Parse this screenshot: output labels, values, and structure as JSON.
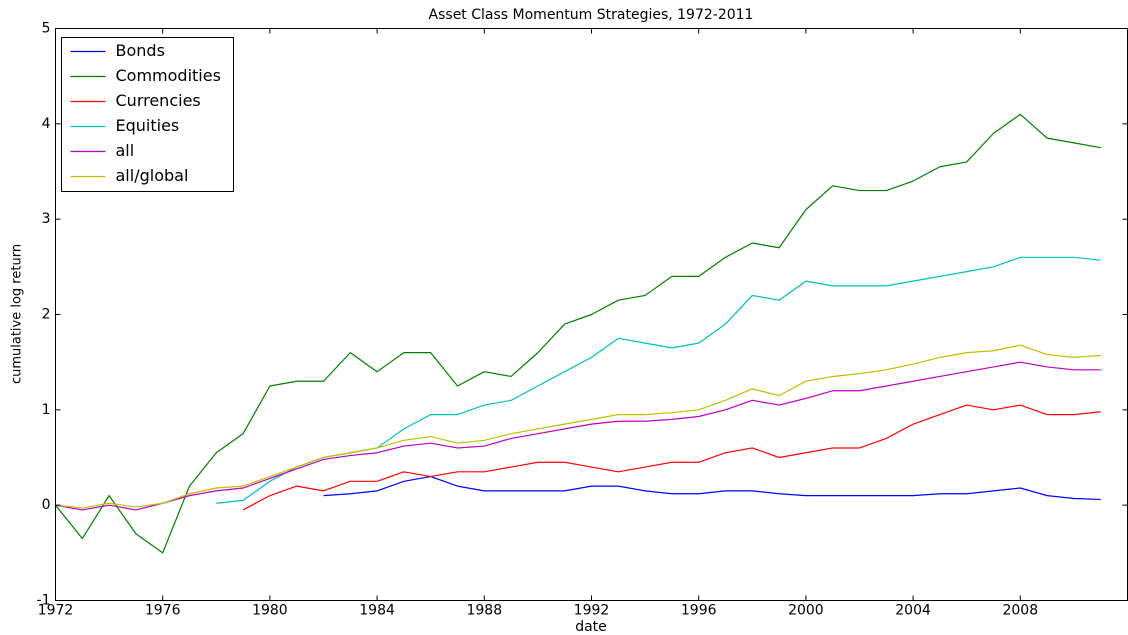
{
  "chart_data": {
    "type": "line",
    "title": "Asset Class Momentum Strategies, 1972-2011",
    "x_label": "date",
    "y_label": "cumulative log return",
    "x": [
      1972,
      1973,
      1974,
      1975,
      1976,
      1977,
      1978,
      1979,
      1980,
      1981,
      1982,
      1983,
      1984,
      1985,
      1986,
      1987,
      1988,
      1989,
      1990,
      1991,
      1992,
      1993,
      1994,
      1995,
      1996,
      1997,
      1998,
      1999,
      2000,
      2001,
      2002,
      2003,
      2004,
      2005,
      2006,
      2007,
      2008,
      2009,
      2010,
      2011
    ],
    "xlim": [
      1972,
      2012
    ],
    "xticks": [
      1972,
      1976,
      1980,
      1984,
      1988,
      1992,
      1996,
      2000,
      2004,
      2008
    ],
    "ylim": [
      -1,
      5
    ],
    "yticks": [
      -1,
      0,
      1,
      2,
      3,
      4,
      5
    ],
    "grid": false,
    "legend": "upper left",
    "series": [
      {
        "name": "Bonds",
        "color": "#0000ff",
        "values": [
          null,
          null,
          null,
          null,
          null,
          null,
          null,
          null,
          null,
          null,
          0.1,
          0.12,
          0.15,
          0.25,
          0.3,
          0.2,
          0.15,
          0.15,
          0.15,
          0.15,
          0.2,
          0.2,
          0.15,
          0.12,
          0.12,
          0.15,
          0.15,
          0.12,
          0.1,
          0.1,
          0.1,
          0.1,
          0.1,
          0.12,
          0.12,
          0.15,
          0.18,
          0.1,
          0.07,
          0.06
        ]
      },
      {
        "name": "Commodities",
        "color": "#008000",
        "values": [
          0,
          -0.35,
          0.1,
          -0.3,
          -0.5,
          0.2,
          0.55,
          0.75,
          1.25,
          1.3,
          1.3,
          1.6,
          1.4,
          1.6,
          1.6,
          1.25,
          1.4,
          1.35,
          1.6,
          1.9,
          2.0,
          2.15,
          2.2,
          2.4,
          2.4,
          2.6,
          2.75,
          2.7,
          3.1,
          3.35,
          3.3,
          3.3,
          3.4,
          3.55,
          3.6,
          3.9,
          4.1,
          3.85,
          3.8,
          3.75
        ]
      },
      {
        "name": "Currencies",
        "color": "#ff0000",
        "values": [
          null,
          null,
          null,
          null,
          null,
          null,
          null,
          -0.05,
          0.1,
          0.2,
          0.15,
          0.25,
          0.25,
          0.35,
          0.3,
          0.35,
          0.35,
          0.4,
          0.45,
          0.45,
          0.4,
          0.35,
          0.4,
          0.45,
          0.45,
          0.55,
          0.6,
          0.5,
          0.55,
          0.6,
          0.6,
          0.7,
          0.85,
          0.95,
          1.05,
          1.0,
          1.05,
          0.95,
          0.95,
          0.98
        ]
      },
      {
        "name": "Equities",
        "color": "#00bfbf",
        "values": [
          null,
          null,
          null,
          null,
          null,
          null,
          0.02,
          0.05,
          0.25,
          0.4,
          0.5,
          0.55,
          0.6,
          0.8,
          0.95,
          0.95,
          1.05,
          1.1,
          1.25,
          1.4,
          1.55,
          1.75,
          1.7,
          1.65,
          1.7,
          1.9,
          2.2,
          2.15,
          2.35,
          2.3,
          2.3,
          2.3,
          2.35,
          2.4,
          2.45,
          2.5,
          2.6,
          2.6,
          2.6,
          2.57
        ]
      },
      {
        "name": "all",
        "color": "#bf00bf",
        "values": [
          0,
          -0.05,
          0,
          -0.05,
          0.02,
          0.1,
          0.15,
          0.18,
          0.28,
          0.38,
          0.48,
          0.52,
          0.55,
          0.62,
          0.65,
          0.6,
          0.62,
          0.7,
          0.75,
          0.8,
          0.85,
          0.88,
          0.88,
          0.9,
          0.93,
          1.0,
          1.1,
          1.05,
          1.12,
          1.2,
          1.2,
          1.25,
          1.3,
          1.35,
          1.4,
          1.45,
          1.5,
          1.45,
          1.42,
          1.42
        ]
      },
      {
        "name": "all/global",
        "color": "#bfbf00",
        "values": [
          0,
          -0.03,
          0.02,
          -0.02,
          0.02,
          0.12,
          0.18,
          0.2,
          0.3,
          0.4,
          0.5,
          0.55,
          0.6,
          0.68,
          0.72,
          0.65,
          0.68,
          0.75,
          0.8,
          0.85,
          0.9,
          0.95,
          0.95,
          0.97,
          1.0,
          1.1,
          1.22,
          1.15,
          1.3,
          1.35,
          1.38,
          1.42,
          1.48,
          1.55,
          1.6,
          1.62,
          1.68,
          1.58,
          1.55,
          1.57
        ]
      }
    ]
  }
}
